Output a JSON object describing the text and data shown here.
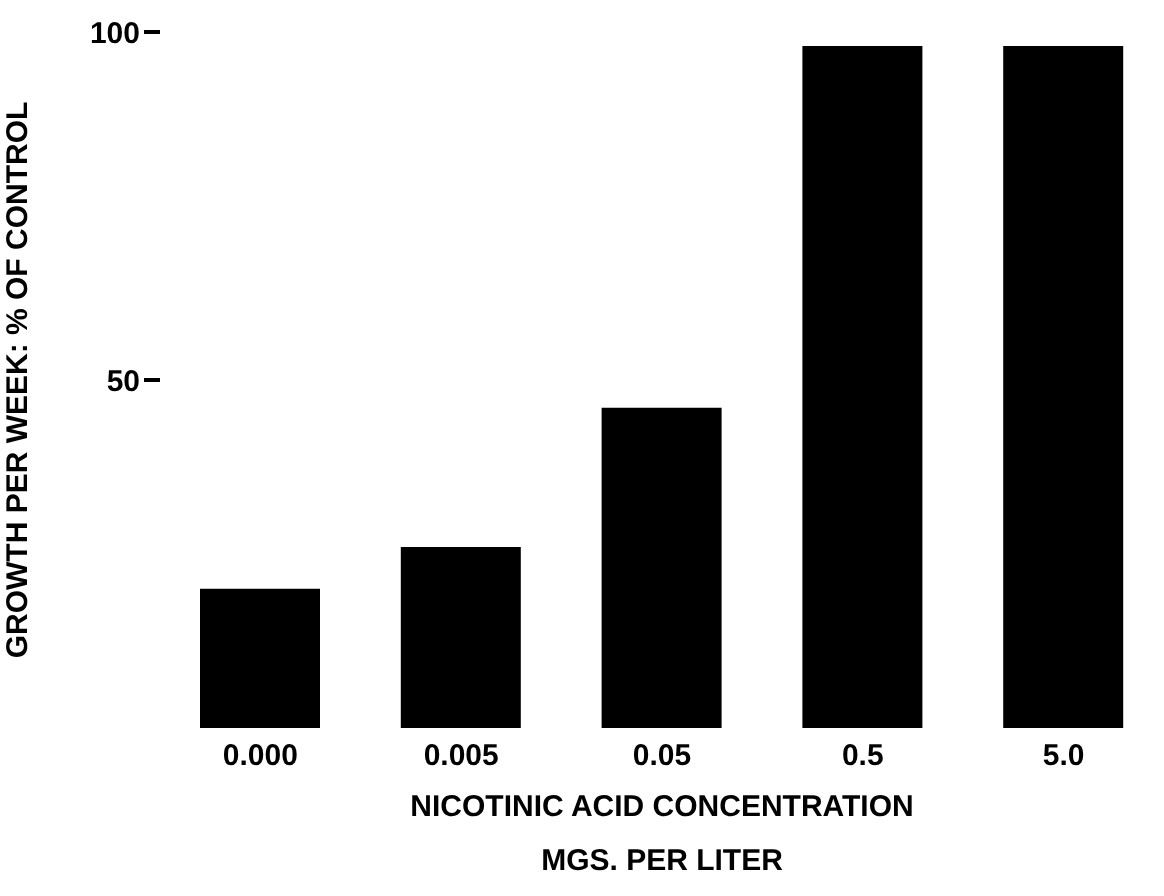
{
  "chart_data": {
    "type": "bar",
    "categories": [
      "0.000",
      "0.005",
      "0.05",
      "0.5",
      "5.0"
    ],
    "values": [
      20,
      26,
      46,
      98,
      98
    ],
    "color": "#000000",
    "ylim": [
      0,
      100
    ],
    "yticks": [
      50,
      100
    ],
    "ylabel": "GROWTH  PER  WEEK: % OF CONTROL",
    "xlabel": "NICOTINIC  ACID  CONCENTRATION\nMGS. PER LITER",
    "grid": false,
    "legend": false
  }
}
